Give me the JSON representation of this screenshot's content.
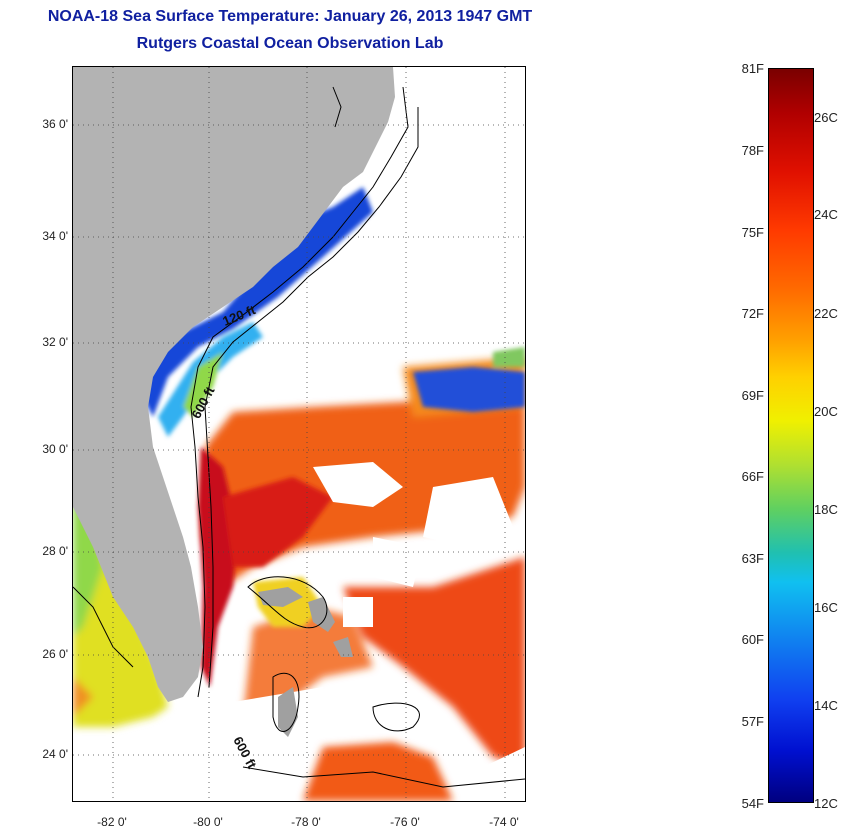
{
  "title": {
    "line1": "NOAA-18 Sea Surface Temperature:  January 26, 2013 1947 GMT",
    "line2": "Rutgers Coastal Ocean Observation Lab"
  },
  "map": {
    "lat_labels": [
      "36 0'",
      "34 0'",
      "32 0'",
      "30 0'",
      "28 0'",
      "26 0'",
      "24 0'"
    ],
    "lon_labels": [
      "-82 0'",
      "-80 0'",
      "-78 0'",
      "-76 0'",
      "-74 0'"
    ],
    "contour_labels": [
      "120 ft",
      "600 ft",
      "600 ft"
    ],
    "colors": {
      "land": "#b3b3b3",
      "cloud": "#ffffff",
      "gulf_stream": "#cc1010"
    }
  },
  "colorbar": {
    "fahrenheit": [
      "81F",
      "78F",
      "75F",
      "72F",
      "69F",
      "66F",
      "63F",
      "60F",
      "57F",
      "54F"
    ],
    "celsius": [
      "26C",
      "24C",
      "22C",
      "20C",
      "18C",
      "16C",
      "14C",
      "12C"
    ]
  }
}
